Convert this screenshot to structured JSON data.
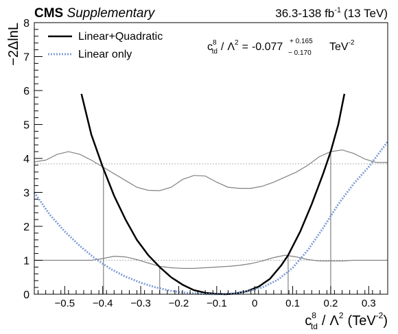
{
  "header": {
    "experiment": "CMS",
    "tag": "Supplementary",
    "lumi_value": "36.3-138 fb",
    "lumi_exp": "-1",
    "lumi_energy": "(13 TeV)"
  },
  "annotation": {
    "c": "c",
    "c_sup": "8",
    "c_sub": "td",
    "slash": "/",
    "lambda": "Λ",
    "lambda_sup": "2",
    "equals": "=",
    "value": "-0.077",
    "err_up": "+ 0.165",
    "err_down": "− 0.170",
    "unit": "TeV",
    "unit_sup": "-2"
  },
  "xaxis": {
    "c": "c",
    "c_sup": "8",
    "c_sub": "td",
    "slash": "/",
    "lambda": "Λ",
    "lambda_sup": "2",
    "unit_open": "(TeV",
    "unit_sup": "-2",
    "unit_close": ")"
  },
  "yaxis": {
    "label": "−2ΔlnL"
  },
  "chart_data": {
    "type": "line",
    "xlim": [
      -0.58,
      0.35
    ],
    "ylim": [
      0,
      8
    ],
    "xticks": [
      -0.5,
      -0.4,
      -0.3,
      -0.2,
      -0.1,
      0,
      0.1,
      0.2,
      0.3
    ],
    "xtick_labels": [
      "−0.5",
      "−0.4",
      "−0.3",
      "−0.2",
      "−0.1",
      "0",
      "0.1",
      "0.2",
      "0.3"
    ],
    "yticks": [
      0,
      1,
      2,
      3,
      4,
      5,
      6,
      7,
      8
    ],
    "ytick_labels": [
      "0",
      "1",
      "2",
      "3",
      "4",
      "5",
      "6",
      "7",
      "8"
    ],
    "legend_position": "top-left",
    "reference_lines": [
      1,
      3.84
    ],
    "series": [
      {
        "name": "Linear+Quadratic",
        "color": "#000000",
        "style": "solid",
        "x": [
          -0.456,
          -0.43,
          -0.4,
          -0.37,
          -0.34,
          -0.31,
          -0.28,
          -0.25,
          -0.22,
          -0.19,
          -0.16,
          -0.13,
          -0.1,
          -0.077,
          -0.05,
          -0.02,
          0.01,
          0.04,
          0.07,
          0.088,
          0.12,
          0.15,
          0.18,
          0.2,
          0.22,
          0.236
        ],
        "y": [
          5.9,
          4.7,
          3.75,
          2.9,
          2.2,
          1.6,
          1.15,
          0.8,
          0.5,
          0.28,
          0.12,
          0.04,
          0.01,
          0.0,
          0.02,
          0.09,
          0.22,
          0.45,
          0.85,
          1.15,
          1.85,
          2.65,
          3.55,
          4.2,
          5.0,
          5.9
        ]
      },
      {
        "name": "Linear only",
        "color": "#7f9ed4",
        "style": "dotted",
        "x": [
          -0.58,
          -0.54,
          -0.5,
          -0.46,
          -0.42,
          -0.38,
          -0.34,
          -0.3,
          -0.26,
          -0.22,
          -0.18,
          -0.14,
          -0.1,
          -0.06,
          -0.02,
          0.02,
          0.06,
          0.1,
          0.14,
          0.18,
          0.22,
          0.26,
          0.3,
          0.35
        ],
        "y": [
          3.0,
          2.35,
          1.85,
          1.42,
          1.05,
          0.75,
          0.52,
          0.34,
          0.2,
          0.1,
          0.04,
          0.01,
          0.0,
          0.02,
          0.08,
          0.2,
          0.42,
          0.78,
          1.3,
          1.95,
          2.65,
          3.25,
          3.75,
          4.5
        ]
      }
    ],
    "aux_curves": [
      {
        "color": "#808080",
        "x": [
          -0.58,
          -0.55,
          -0.52,
          -0.49,
          -0.46,
          -0.43,
          -0.4,
          -0.37,
          -0.34,
          -0.31,
          -0.28,
          -0.25,
          -0.22,
          -0.19,
          -0.16,
          -0.13,
          -0.1,
          -0.07,
          -0.04,
          -0.01,
          0.02,
          0.05,
          0.08,
          0.11,
          0.14,
          0.17,
          0.2,
          0.23,
          0.26,
          0.29,
          0.32,
          0.35
        ],
        "y": [
          3.9,
          3.95,
          4.12,
          4.2,
          4.12,
          3.95,
          3.75,
          3.55,
          3.35,
          3.15,
          3.06,
          3.05,
          3.15,
          3.38,
          3.5,
          3.48,
          3.3,
          3.15,
          3.12,
          3.12,
          3.18,
          3.3,
          3.45,
          3.6,
          3.8,
          4.05,
          4.2,
          4.25,
          4.15,
          3.98,
          3.88,
          3.88
        ]
      },
      {
        "color": "#808080",
        "x": [
          -0.58,
          -0.55,
          -0.52,
          -0.49,
          -0.46,
          -0.43,
          -0.4,
          -0.37,
          -0.34,
          -0.31,
          -0.28,
          -0.25,
          -0.22,
          -0.19,
          -0.16,
          -0.13,
          -0.1,
          -0.07,
          -0.04,
          -0.01,
          0.02,
          0.05,
          0.08,
          0.11,
          0.14,
          0.17,
          0.2,
          0.23,
          0.26,
          0.29,
          0.32,
          0.35
        ],
        "y": [
          1.0,
          1.0,
          1.0,
          1.0,
          1.0,
          1.0,
          1.05,
          1.12,
          1.1,
          1.02,
          0.92,
          0.82,
          0.78,
          0.76,
          0.76,
          0.78,
          0.8,
          0.82,
          0.85,
          0.9,
          0.98,
          1.08,
          1.15,
          1.1,
          1.02,
          0.98,
          0.98,
          0.98,
          1.0,
          1.0,
          1.0,
          1.0
        ]
      }
    ],
    "interval_drops": [
      {
        "x": -0.398,
        "y": 3.75
      },
      {
        "x": -0.25,
        "y": 0.82
      },
      {
        "x": 0.088,
        "y": 1.15
      },
      {
        "x": 0.2,
        "y": 4.2
      }
    ]
  }
}
